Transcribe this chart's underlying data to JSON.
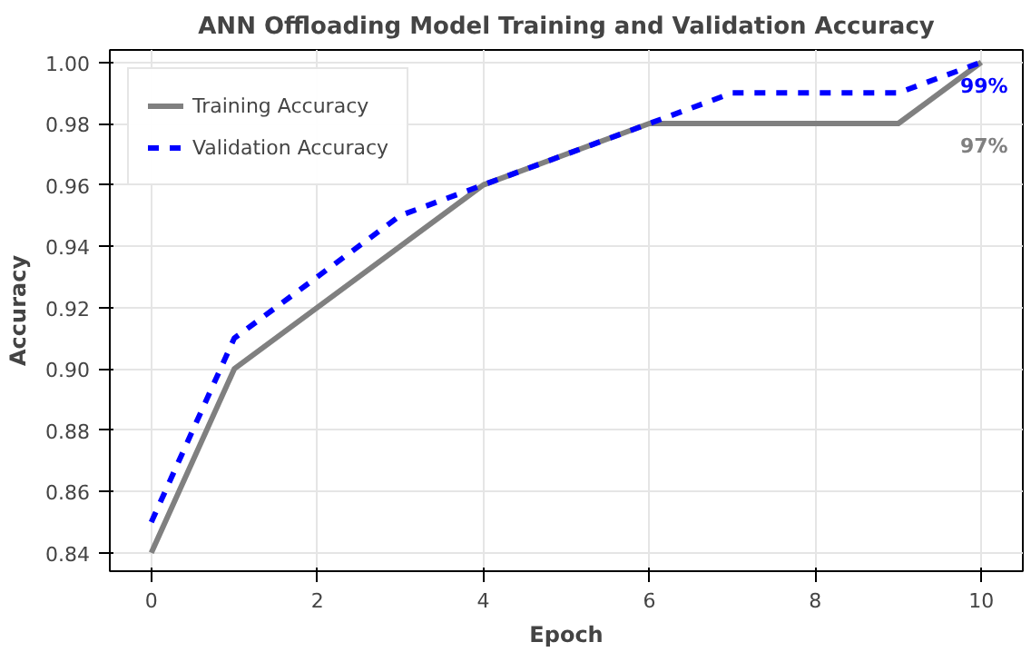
{
  "chart_data": {
    "type": "line",
    "title": "ANN Offloading Model Training and Validation Accuracy",
    "xlabel": "Epoch",
    "ylabel": "Accuracy",
    "x": [
      0,
      1,
      2,
      3,
      4,
      5,
      6,
      7,
      8,
      9,
      10
    ],
    "series": [
      {
        "name": "Training Accuracy",
        "color": "#808080",
        "line_style": "solid",
        "values": [
          0.84,
          0.9,
          0.92,
          0.94,
          0.96,
          0.97,
          0.98,
          0.98,
          0.98,
          0.98,
          1.0
        ]
      },
      {
        "name": "Validation Accuracy",
        "color": "#0000ff",
        "line_style": "dashed",
        "values": [
          0.85,
          0.91,
          0.93,
          0.95,
          0.96,
          0.97,
          0.98,
          0.99,
          0.99,
          0.99,
          1.0
        ]
      }
    ],
    "annotations": [
      "99%",
      "97%"
    ],
    "xlim": [
      -0.5,
      10.5
    ],
    "ylim": [
      0.834,
      1.004
    ],
    "xticks": [
      0,
      2,
      4,
      6,
      8,
      10
    ],
    "yticks": [
      {
        "value": 0.84,
        "label": "0.84"
      },
      {
        "value": 0.86,
        "label": "0.86"
      },
      {
        "value": 0.88,
        "label": "0.88"
      },
      {
        "value": 0.9,
        "label": "0.90"
      },
      {
        "value": 0.92,
        "label": "0.92"
      },
      {
        "value": 0.94,
        "label": "0.94"
      },
      {
        "value": 0.96,
        "label": "0.96"
      },
      {
        "value": 0.98,
        "label": "0.98"
      },
      {
        "value": 1.0,
        "label": "1.00"
      }
    ],
    "grid": true,
    "legend": "top left"
  }
}
